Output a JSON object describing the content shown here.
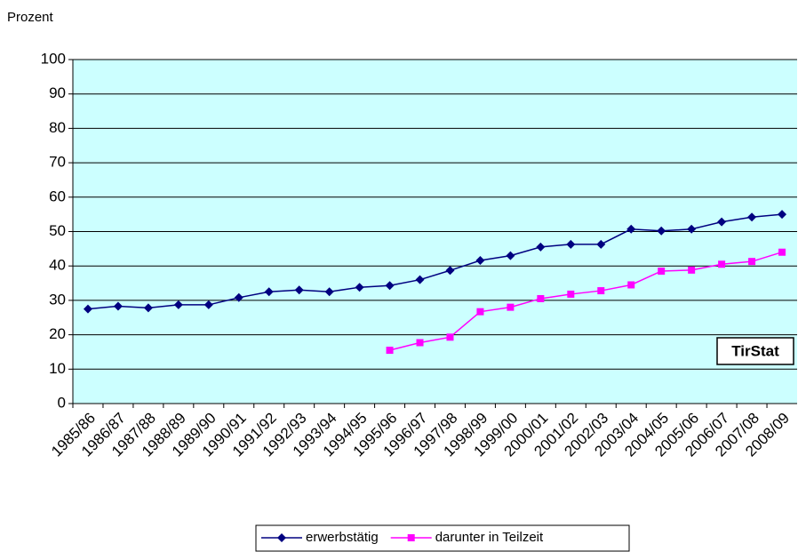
{
  "chart_data": {
    "type": "line",
    "y_label": "Prozent",
    "annotation": "TirStat",
    "categories": [
      "1985/86",
      "1986/87",
      "1987/88",
      "1988/89",
      "1989/90",
      "1990/91",
      "1991/92",
      "1992/93",
      "1993/94",
      "1994/95",
      "1995/96",
      "1996/97",
      "1997/98",
      "1998/99",
      "1999/00",
      "2000/01",
      "2001/02",
      "2002/03",
      "2003/04",
      "2004/05",
      "2005/06",
      "2006/07",
      "2007/08",
      "2008/09"
    ],
    "series": [
      {
        "name": "erwerbstätig",
        "color": "#000080",
        "marker": "diamond",
        "values": [
          27.5,
          28.3,
          27.8,
          28.7,
          28.7,
          30.8,
          32.5,
          33,
          32.5,
          33.8,
          34.3,
          36,
          38.7,
          41.6,
          43,
          45.5,
          46.3,
          46.3,
          50.7,
          50.2,
          50.7,
          52.8,
          54.2,
          55
        ]
      },
      {
        "name": "darunter in Teilzeit",
        "color": "#ff00ff",
        "marker": "square",
        "values": [
          null,
          null,
          null,
          null,
          null,
          null,
          null,
          null,
          null,
          null,
          15.5,
          17.7,
          19.3,
          26.7,
          28,
          30.5,
          31.8,
          32.8,
          34.5,
          38.5,
          38.8,
          40.5,
          41.3,
          44
        ]
      }
    ],
    "ylim": [
      0,
      100
    ],
    "yticks": [
      0,
      10,
      20,
      30,
      40,
      50,
      60,
      70,
      80,
      90,
      100
    ],
    "grid": true,
    "plot_background": "#ccffff"
  }
}
